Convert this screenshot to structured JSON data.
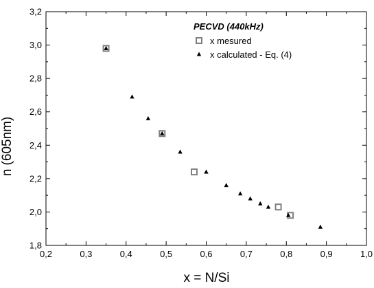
{
  "chart_data": {
    "type": "scatter",
    "xlabel": "x = N/Si",
    "ylabel": "n (605nm)",
    "xlim": [
      0.2,
      1.0
    ],
    "ylim": [
      1.8,
      3.2
    ],
    "x_ticks": [
      "0,2",
      "0,3",
      "0,4",
      "0,5",
      "0,6",
      "0,7",
      "0,8",
      "0,9",
      "1,0"
    ],
    "y_ticks": [
      "1,8",
      "2,0",
      "2,2",
      "2,4",
      "2,6",
      "2,8",
      "3,0",
      "3,2"
    ],
    "legend": {
      "title": "PECVD (440kHz)",
      "position": "top-right"
    },
    "series": [
      {
        "name": "x mesured",
        "marker": "open-square",
        "color": "#7f7f7f",
        "points": [
          {
            "x": 0.35,
            "y": 2.98
          },
          {
            "x": 0.49,
            "y": 2.47
          },
          {
            "x": 0.57,
            "y": 2.24
          },
          {
            "x": 0.78,
            "y": 2.03
          },
          {
            "x": 0.81,
            "y": 1.98
          }
        ]
      },
      {
        "name": "x calculated - Eq. (4)",
        "marker": "filled-triangle",
        "color": "#000000",
        "points": [
          {
            "x": 0.35,
            "y": 2.98
          },
          {
            "x": 0.415,
            "y": 2.69
          },
          {
            "x": 0.455,
            "y": 2.56
          },
          {
            "x": 0.49,
            "y": 2.47
          },
          {
            "x": 0.535,
            "y": 2.36
          },
          {
            "x": 0.6,
            "y": 2.24
          },
          {
            "x": 0.65,
            "y": 2.16
          },
          {
            "x": 0.685,
            "y": 2.11
          },
          {
            "x": 0.71,
            "y": 2.08
          },
          {
            "x": 0.735,
            "y": 2.05
          },
          {
            "x": 0.755,
            "y": 2.03
          },
          {
            "x": 0.805,
            "y": 1.98
          },
          {
            "x": 0.885,
            "y": 1.91
          }
        ]
      }
    ]
  }
}
